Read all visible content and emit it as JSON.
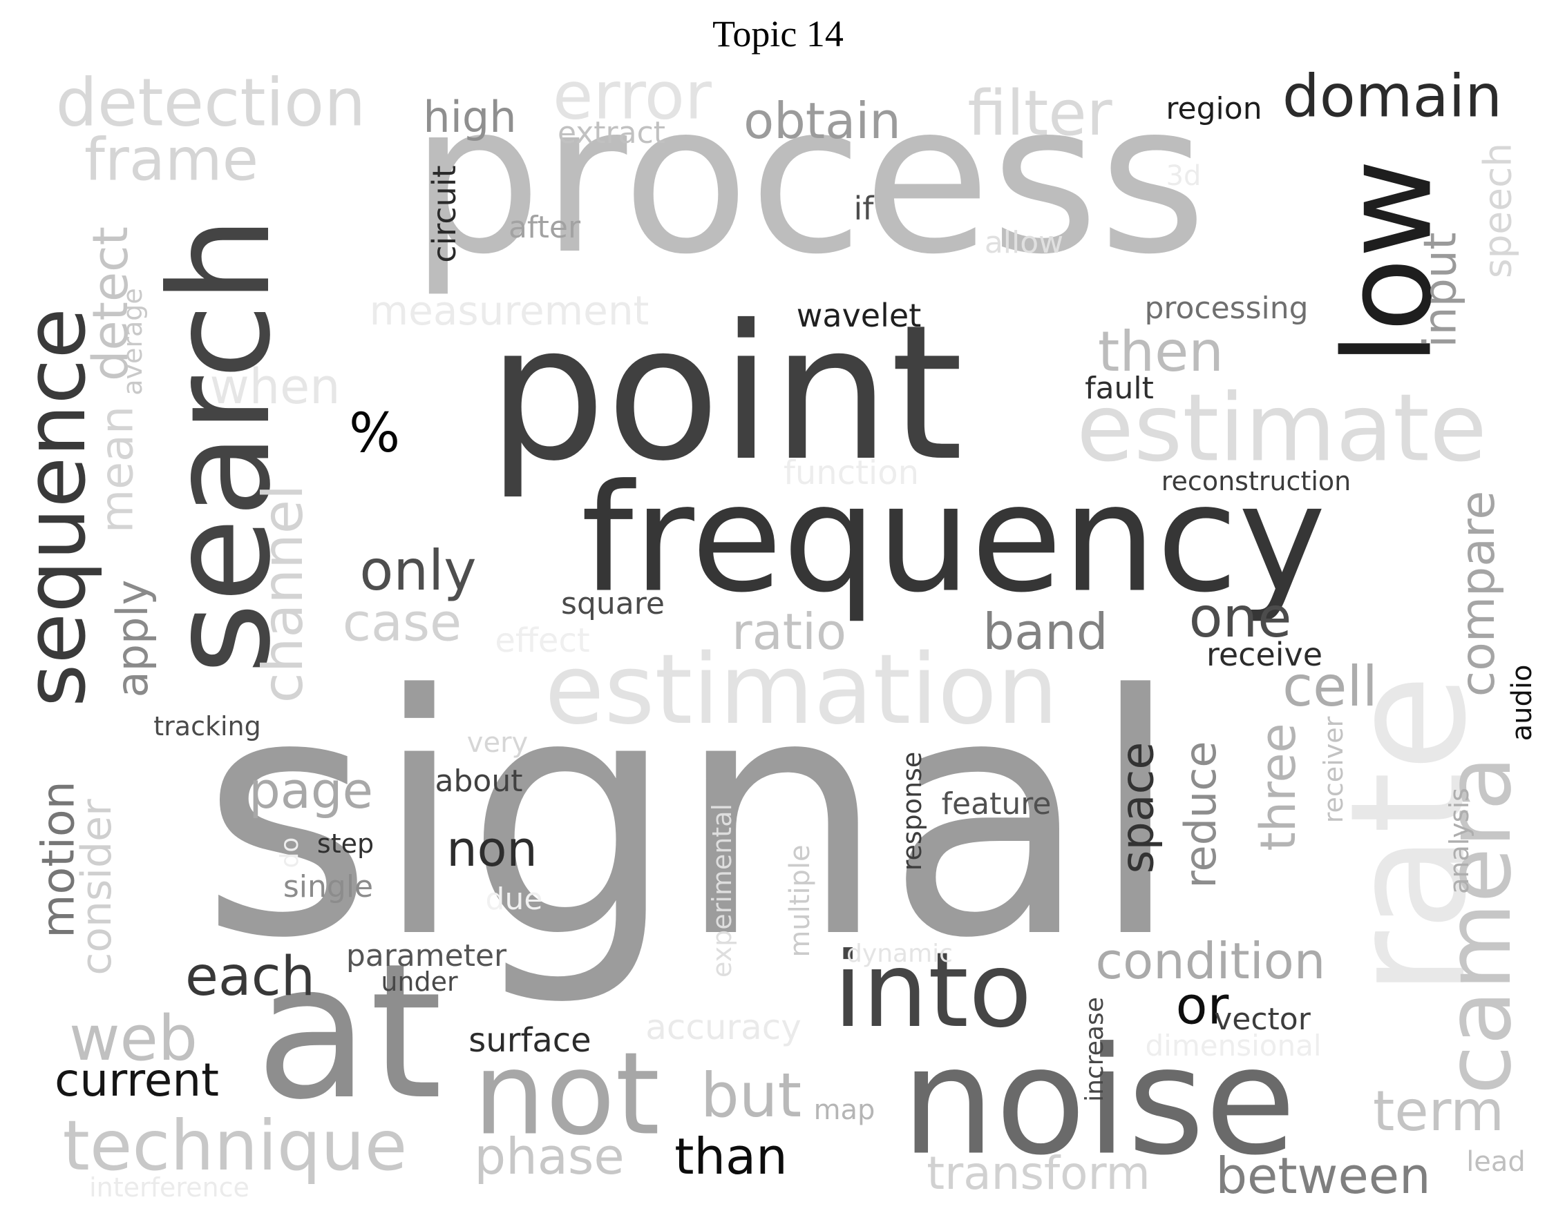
{
  "title": "Topic 14",
  "words": [
    {
      "text": "signal",
      "shade": "#9c9c9c"
    },
    {
      "text": "process",
      "shade": "#bdbdbd"
    },
    {
      "text": "point",
      "shade": "#404040"
    },
    {
      "text": "frequency",
      "shade": "#363636"
    },
    {
      "text": "search",
      "shade": "#444444"
    },
    {
      "text": "low",
      "shade": "#1e1e1e"
    },
    {
      "text": "estimation",
      "shade": "#e2e2e2"
    },
    {
      "text": "estimate",
      "shade": "#dcdcdc"
    },
    {
      "text": "at",
      "shade": "#8e8e8e"
    },
    {
      "text": "noise",
      "shade": "#6a6a6a"
    },
    {
      "text": "rate",
      "shade": "#e8e8e8"
    },
    {
      "text": "camera",
      "shade": "#c6c6c6"
    },
    {
      "text": "not",
      "shade": "#a7a7a7"
    },
    {
      "text": "into",
      "shade": "#454545"
    },
    {
      "text": "sequence",
      "shade": "#3a3a3a"
    },
    {
      "text": "technique",
      "shade": "#c8c8c8"
    },
    {
      "text": "detection",
      "shade": "#d8d8d8"
    },
    {
      "text": "error",
      "shade": "#e3e3e3"
    },
    {
      "text": "filter",
      "shade": "#d9d9d9"
    },
    {
      "text": "domain",
      "shade": "#2b2b2b"
    },
    {
      "text": "obtain",
      "shade": "#9b9b9b"
    },
    {
      "text": "frame",
      "shade": "#d5d5d5"
    },
    {
      "text": "high",
      "shade": "#8f8f8f"
    },
    {
      "text": "extract",
      "shade": "#c1c1c1"
    },
    {
      "text": "region",
      "shade": "#1d1d1d"
    },
    {
      "text": "circuit",
      "shade": "#2a2a2a"
    },
    {
      "text": "after",
      "shade": "#a2a2a2"
    },
    {
      "text": "if",
      "shade": "#4d4d4d"
    },
    {
      "text": "3d",
      "shade": "#ececec"
    },
    {
      "text": "allow",
      "shade": "#e0e0e0"
    },
    {
      "text": "speech",
      "shade": "#d7d7d7"
    },
    {
      "text": "input",
      "shade": "#9a9a9a"
    },
    {
      "text": "detect",
      "shade": "#c5c5c5"
    },
    {
      "text": "average",
      "shade": "#c9c9c9"
    },
    {
      "text": "mean",
      "shade": "#d4d4d4"
    },
    {
      "text": "measurement",
      "shade": "#ebebeb"
    },
    {
      "text": "wavelet",
      "shade": "#1f1f1f"
    },
    {
      "text": "processing",
      "shade": "#6f6f6f"
    },
    {
      "text": "then",
      "shade": "#bcbcbc"
    },
    {
      "text": "when",
      "shade": "#e6e6e6"
    },
    {
      "text": "fault",
      "shade": "#2e2e2e"
    },
    {
      "text": "%",
      "shade": "#050505"
    },
    {
      "text": "function",
      "shade": "#ededed"
    },
    {
      "text": "reconstruction",
      "shade": "#3b3b3b"
    },
    {
      "text": "channel",
      "shade": "#d3d3d3"
    },
    {
      "text": "apply",
      "shade": "#8a8a8a"
    },
    {
      "text": "only",
      "shade": "#4e4e4e"
    },
    {
      "text": "square",
      "shade": "#4b4b4b"
    },
    {
      "text": "case",
      "shade": "#d2d2d2"
    },
    {
      "text": "effect",
      "shade": "#efefef"
    },
    {
      "text": "ratio",
      "shade": "#c3c3c3"
    },
    {
      "text": "band",
      "shade": "#828282"
    },
    {
      "text": "one",
      "shade": "#4c4c4c"
    },
    {
      "text": "receive",
      "shade": "#2c2c2c"
    },
    {
      "text": "compare",
      "shade": "#a5a5a5"
    },
    {
      "text": "cell",
      "shade": "#acacac"
    },
    {
      "text": "audio",
      "shade": "#111111"
    },
    {
      "text": "tracking",
      "shade": "#4a4a4a"
    },
    {
      "text": "very",
      "shade": "#d6d6d6"
    },
    {
      "text": "about",
      "shade": "#414141"
    },
    {
      "text": "page",
      "shade": "#a8a8a8"
    },
    {
      "text": "motion",
      "shade": "#767676"
    },
    {
      "text": "consider",
      "shade": "#cfcfcf"
    },
    {
      "text": "step",
      "shade": "#2f2f2f"
    },
    {
      "text": "do",
      "shade": "#eeeeee"
    },
    {
      "text": "single",
      "shade": "#8c8c8c"
    },
    {
      "text": "due",
      "shade": "#f1f1f1"
    },
    {
      "text": "non",
      "shade": "#2d2d2d"
    },
    {
      "text": "experimental",
      "shade": "#dedede"
    },
    {
      "text": "multiple",
      "shade": "#cbcbcb"
    },
    {
      "text": "response",
      "shade": "#3d3d3d"
    },
    {
      "text": "feature",
      "shade": "#505050"
    },
    {
      "text": "space",
      "shade": "#333333"
    },
    {
      "text": "reduce",
      "shade": "#8d8d8d"
    },
    {
      "text": "three",
      "shade": "#b4b4b4"
    },
    {
      "text": "receiver",
      "shade": "#c2c2c2"
    },
    {
      "text": "analysis",
      "shade": "#aeaeae"
    },
    {
      "text": "each",
      "shade": "#383838"
    },
    {
      "text": "parameter",
      "shade": "#555555"
    },
    {
      "text": "under",
      "shade": "#484848"
    },
    {
      "text": "dynamic",
      "shade": "#e4e4e4"
    },
    {
      "text": "condition",
      "shade": "#aaaaaa"
    },
    {
      "text": "or",
      "shade": "#0e0e0e"
    },
    {
      "text": "vector",
      "shade": "#3c3c3c"
    },
    {
      "text": "web",
      "shade": "#c0c0c0"
    },
    {
      "text": "current",
      "shade": "#151515"
    },
    {
      "text": "surface",
      "shade": "#2b2b2b"
    },
    {
      "text": "accuracy",
      "shade": "#eaeaea"
    },
    {
      "text": "increase",
      "shade": "#474747"
    },
    {
      "text": "dimensional",
      "shade": "#eeeeee"
    },
    {
      "text": "but",
      "shade": "#b9b9b9"
    },
    {
      "text": "map",
      "shade": "#b5b5b5"
    },
    {
      "text": "term",
      "shade": "#c4c4c4"
    },
    {
      "text": "phase",
      "shade": "#c7c7c7"
    },
    {
      "text": "than",
      "shade": "#0c0c0c"
    },
    {
      "text": "transform",
      "shade": "#d1d1d1"
    },
    {
      "text": "between",
      "shade": "#7f7f7f"
    },
    {
      "text": "lead",
      "shade": "#bfbfbf"
    },
    {
      "text": "interference",
      "shade": "#ebebeb"
    }
  ]
}
